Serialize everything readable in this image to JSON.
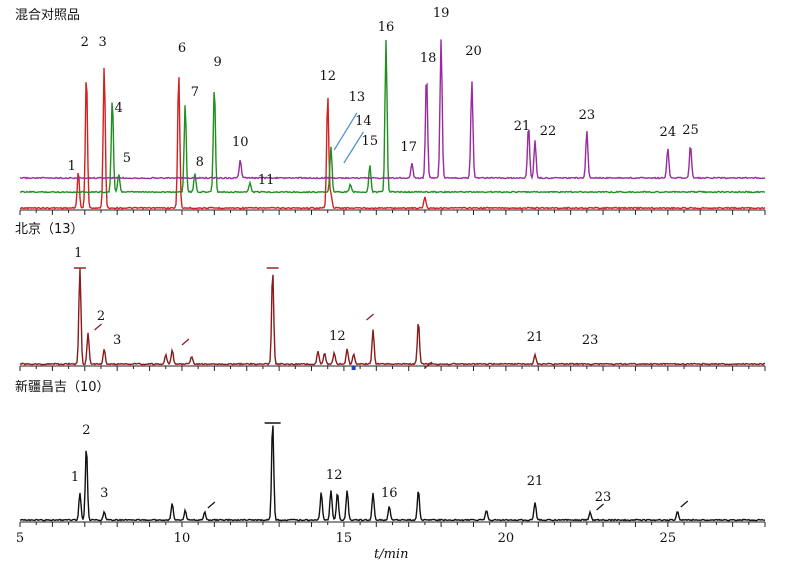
{
  "chart_data": {
    "type": "line",
    "xlabel": "t/min",
    "xlim": [
      5,
      28
    ],
    "xticks": [
      5,
      10,
      15,
      20,
      25
    ],
    "colors": {
      "red": "#d42020",
      "green": "#1f8f1f",
      "purple": "#9a2aa0",
      "darkred": "#8b1a1a",
      "black": "#111111",
      "arrow": "#4a8fd0"
    },
    "panels": [
      {
        "title": "混合对照品",
        "traces": [
          {
            "color": "red",
            "peaks": [
              [
                6.8,
                0.26
              ],
              [
                7.05,
                0.95
              ],
              [
                7.6,
                1.0
              ],
              [
                9.9,
                0.95
              ],
              [
                14.5,
                0.8
              ],
              [
                14.6,
                0.1
              ],
              [
                17.5,
                0.08
              ]
            ]
          },
          {
            "color": "green",
            "peaks": [
              [
                7.85,
                0.62
              ],
              [
                8.05,
                0.12
              ],
              [
                10.1,
                0.58
              ],
              [
                10.4,
                0.12
              ],
              [
                11.0,
                0.7
              ],
              [
                12.1,
                0.06
              ],
              [
                14.6,
                0.3
              ],
              [
                15.2,
                0.05
              ],
              [
                15.8,
                0.18
              ],
              [
                16.3,
                1.0
              ]
            ]
          },
          {
            "color": "purple",
            "peaks": [
              [
                11.8,
                0.12
              ],
              [
                17.1,
                0.1
              ],
              [
                17.55,
                0.7
              ],
              [
                18.0,
                0.93
              ],
              [
                18.95,
                0.65
              ],
              [
                20.7,
                0.35
              ],
              [
                20.9,
                0.25
              ],
              [
                22.5,
                0.32
              ],
              [
                25.0,
                0.2
              ],
              [
                25.7,
                0.22
              ]
            ]
          }
        ],
        "labels": [
          {
            "text": "1",
            "x": 6.6
          },
          {
            "text": "2",
            "x": 7.0
          },
          {
            "text": "3",
            "x": 7.55
          },
          {
            "text": "4",
            "x": 8.05
          },
          {
            "text": "5",
            "x": 8.3
          },
          {
            "text": "6",
            "x": 10.0
          },
          {
            "text": "7",
            "x": 10.4
          },
          {
            "text": "8",
            "x": 10.55
          },
          {
            "text": "9",
            "x": 11.1
          },
          {
            "text": "10",
            "x": 11.8
          },
          {
            "text": "11",
            "x": 12.6
          },
          {
            "text": "12",
            "x": 14.5
          },
          {
            "text": "13",
            "x": 15.4
          },
          {
            "text": "14",
            "x": 15.6
          },
          {
            "text": "15",
            "x": 15.8
          },
          {
            "text": "16",
            "x": 16.3
          },
          {
            "text": "17",
            "x": 17.0
          },
          {
            "text": "18",
            "x": 17.6
          },
          {
            "text": "19",
            "x": 18.0
          },
          {
            "text": "20",
            "x": 19.0
          },
          {
            "text": "21",
            "x": 20.5
          },
          {
            "text": "22",
            "x": 21.3
          },
          {
            "text": "23",
            "x": 22.5
          },
          {
            "text": "24",
            "x": 25.0
          },
          {
            "text": "25",
            "x": 25.7
          }
        ]
      },
      {
        "title": "北京（13）",
        "traces": [
          {
            "color": "darkred",
            "peaks": [
              [
                6.85,
                1.0
              ],
              [
                7.1,
                0.32
              ],
              [
                7.6,
                0.16
              ],
              [
                9.5,
                0.1
              ],
              [
                9.7,
                0.15
              ],
              [
                10.3,
                0.08
              ],
              [
                12.8,
                0.98
              ],
              [
                14.2,
                0.14
              ],
              [
                14.4,
                0.12
              ],
              [
                14.7,
                0.12
              ],
              [
                15.1,
                0.16
              ],
              [
                15.3,
                0.1
              ],
              [
                15.9,
                0.36
              ],
              [
                17.3,
                0.45
              ],
              [
                20.9,
                0.1
              ]
            ]
          }
        ],
        "labels": [
          {
            "text": "1",
            "x": 6.8
          },
          {
            "text": "2",
            "x": 7.5
          },
          {
            "text": "3",
            "x": 8.0
          },
          {
            "text": "12",
            "x": 14.8
          },
          {
            "text": "21",
            "x": 20.9
          },
          {
            "text": "23",
            "x": 22.6
          }
        ]
      },
      {
        "title": "新疆昌吉（10）",
        "traces": [
          {
            "color": "black",
            "peaks": [
              [
                6.85,
                0.27
              ],
              [
                7.05,
                0.74
              ],
              [
                7.6,
                0.08
              ],
              [
                9.7,
                0.17
              ],
              [
                10.1,
                0.1
              ],
              [
                10.7,
                0.08
              ],
              [
                12.8,
                1.0
              ],
              [
                14.3,
                0.28
              ],
              [
                14.6,
                0.3
              ],
              [
                14.8,
                0.28
              ],
              [
                15.1,
                0.3
              ],
              [
                15.9,
                0.27
              ],
              [
                16.4,
                0.14
              ],
              [
                17.3,
                0.3
              ],
              [
                19.4,
                0.1
              ],
              [
                20.9,
                0.18
              ],
              [
                22.6,
                0.08
              ],
              [
                25.3,
                0.09
              ]
            ]
          }
        ],
        "labels": [
          {
            "text": "1",
            "x": 6.7
          },
          {
            "text": "2",
            "x": 7.05
          },
          {
            "text": "3",
            "x": 7.6
          },
          {
            "text": "12",
            "x": 14.7
          },
          {
            "text": "16",
            "x": 16.4
          },
          {
            "text": "21",
            "x": 20.9
          },
          {
            "text": "23",
            "x": 23.0
          }
        ]
      }
    ]
  }
}
